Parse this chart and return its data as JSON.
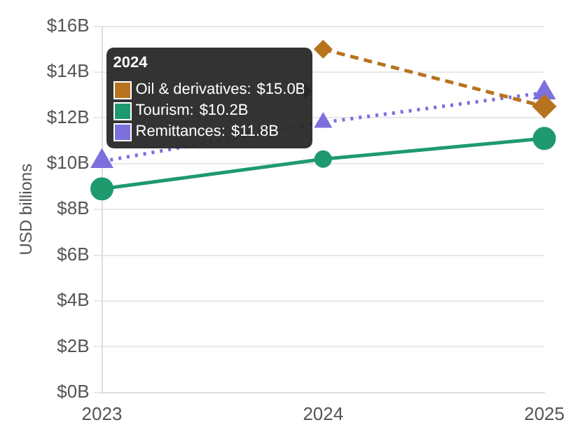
{
  "chart_data": {
    "type": "line",
    "ylabel": "USD billions",
    "categories": [
      "2023",
      "2024",
      "2025"
    ],
    "ylim": [
      0,
      16
    ],
    "yticks": [
      {
        "value": 0,
        "label": "$0B"
      },
      {
        "value": 2,
        "label": "$2B"
      },
      {
        "value": 4,
        "label": "$4B"
      },
      {
        "value": 6,
        "label": "$6B"
      },
      {
        "value": 8,
        "label": "$8B"
      },
      {
        "value": 10,
        "label": "$10B"
      },
      {
        "value": 12,
        "label": "$12B"
      },
      {
        "value": 14,
        "label": "$14B"
      },
      {
        "value": 16,
        "label": "$16B"
      }
    ],
    "grid": "y",
    "legend": "top left",
    "legend_title": "2024",
    "annotations": [
      "$15.0B",
      "$10.2B",
      "$11.8B"
    ],
    "series": [
      {
        "name": "Oil & derivatives:",
        "color": "#b8731f",
        "values": [
          null,
          15.0,
          12.5
        ],
        "marker": "diamond",
        "line_style": "dashed"
      },
      {
        "name": "Tourism:",
        "color": "#1e9a6e",
        "values": [
          8.9,
          10.2,
          11.1
        ],
        "marker": "circle",
        "line_style": "solid"
      },
      {
        "name": "Remittances:",
        "color": "#7b70dc",
        "values": [
          10.1,
          11.8,
          13.1
        ],
        "marker": "triangle",
        "line_style": "dotted"
      }
    ]
  }
}
